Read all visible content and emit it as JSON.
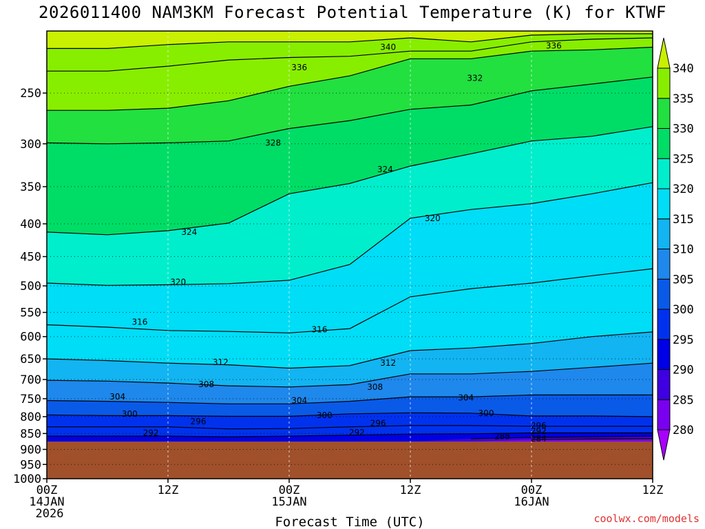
{
  "chart_data": {
    "type": "heatmap",
    "title": "2026011400 NAM3KM Forecast Potential Temperature (K) for KTWF",
    "xlabel": "Forecast Time (UTC)",
    "ylabel": "",
    "credit": "coolwx.com/models",
    "y_ticks": [
      250,
      300,
      350,
      400,
      450,
      500,
      550,
      600,
      650,
      700,
      750,
      800,
      850,
      900,
      950,
      1000
    ],
    "y_range_hpa": [
      1000,
      200
    ],
    "ground_pressure_hpa": 875,
    "x_ticks": [
      {
        "hour": 0,
        "line1": "00Z",
        "line2": "14JAN",
        "line3": "2026"
      },
      {
        "hour": 12,
        "line1": "12Z",
        "line2": "",
        "line3": ""
      },
      {
        "hour": 24,
        "line1": "00Z",
        "line2": "15JAN",
        "line3": ""
      },
      {
        "hour": 36,
        "line1": "12Z",
        "line2": "",
        "line3": ""
      },
      {
        "hour": 48,
        "line1": "00Z",
        "line2": "16JAN",
        "line3": ""
      },
      {
        "hour": 60,
        "line1": "12Z",
        "line2": "",
        "line3": ""
      }
    ],
    "x_range_hours": [
      0,
      60
    ],
    "colorbar_levels": [
      280,
      285,
      290,
      295,
      300,
      305,
      310,
      315,
      320,
      325,
      330,
      335,
      340
    ],
    "colorbar_colors": [
      "#a800ff",
      "#7a00f0",
      "#3e00e0",
      "#0000e6",
      "#0032ee",
      "#0a5ae8",
      "#1e88ec",
      "#12b4f2",
      "#00ddf6",
      "#00eecc",
      "#00dd66",
      "#22e040",
      "#88ee00",
      "#c8f000"
    ],
    "ground_color": "#a0502a",
    "contour_interval_k": 4,
    "hours": [
      0,
      6,
      12,
      18,
      24,
      30,
      36,
      42,
      48,
      54,
      60
    ],
    "isentropes_hpa": [
      {
        "theta": 284,
        "p": [
          0,
          0,
          0,
          0,
          0,
          0,
          0,
          0,
          869,
          867,
          866
        ]
      },
      {
        "theta": 288,
        "p": [
          0,
          0,
          0,
          0,
          0,
          0,
          0,
          866,
          862,
          860,
          858
        ]
      },
      {
        "theta": 292,
        "p": [
          858,
          858,
          858,
          860,
          858,
          855,
          852,
          851,
          848,
          848,
          848
        ]
      },
      {
        "theta": 296,
        "p": [
          830,
          830,
          830,
          836,
          835,
          830,
          826,
          826,
          828,
          828,
          828
        ]
      },
      {
        "theta": 300,
        "p": [
          795,
          797,
          797,
          799,
          799,
          792,
          789,
          790,
          798,
          798,
          800
        ]
      },
      {
        "theta": 304,
        "p": [
          755,
          757,
          760,
          764,
          764,
          757,
          745,
          745,
          740,
          740,
          740
        ]
      },
      {
        "theta": 308,
        "p": [
          702,
          704,
          709,
          716,
          719,
          713,
          686,
          686,
          680,
          670,
          660
        ]
      },
      {
        "theta": 312,
        "p": [
          650,
          654,
          660,
          664,
          672,
          666,
          631,
          625,
          615,
          600,
          590
        ]
      },
      {
        "theta": 316,
        "p": [
          575,
          580,
          587,
          589,
          592,
          583,
          520,
          505,
          495,
          482,
          470
        ]
      },
      {
        "theta": 320,
        "p": [
          495,
          499,
          498,
          496,
          490,
          463,
          392,
          380,
          372,
          359,
          345
        ]
      },
      {
        "theta": 324,
        "p": [
          412,
          416,
          410,
          399,
          359,
          346,
          325,
          311,
          297,
          292,
          282
        ]
      },
      {
        "theta": 328,
        "p": [
          299,
          300,
          299,
          297,
          284,
          276,
          265,
          261,
          248,
          242,
          236
        ]
      },
      {
        "theta": 332,
        "p": [
          266,
          266,
          264,
          257,
          244,
          235,
          221,
          221,
          215,
          214,
          212
        ]
      },
      {
        "theta": 336,
        "p": [
          231,
          231,
          227,
          222,
          220,
          219,
          215,
          215,
          208,
          206,
          205
        ]
      },
      {
        "theta": 340,
        "p": [
          213,
          213,
          210,
          208,
          208,
          208,
          205,
          208,
          203,
          202,
          202
        ]
      }
    ],
    "contour_labels": [
      {
        "text": "340",
        "hour": 33.8,
        "p": 212
      },
      {
        "text": "336",
        "hour": 50.2,
        "p": 211
      },
      {
        "text": "336",
        "hour": 25.0,
        "p": 228
      },
      {
        "text": "332",
        "hour": 42.4,
        "p": 237
      },
      {
        "text": "328",
        "hour": 22.4,
        "p": 299
      },
      {
        "text": "324",
        "hour": 33.5,
        "p": 329
      },
      {
        "text": "324",
        "hour": 14.1,
        "p": 412
      },
      {
        "text": "320",
        "hour": 38.2,
        "p": 392
      },
      {
        "text": "320",
        "hour": 13.0,
        "p": 493
      },
      {
        "text": "316",
        "hour": 9.2,
        "p": 569
      },
      {
        "text": "316",
        "hour": 27.0,
        "p": 585
      },
      {
        "text": "312",
        "hour": 17.2,
        "p": 658
      },
      {
        "text": "312",
        "hour": 33.8,
        "p": 660
      },
      {
        "text": "308",
        "hour": 15.8,
        "p": 712
      },
      {
        "text": "308",
        "hour": 32.5,
        "p": 719
      },
      {
        "text": "304",
        "hour": 7.0,
        "p": 745
      },
      {
        "text": "304",
        "hour": 25.0,
        "p": 755
      },
      {
        "text": "304",
        "hour": 41.5,
        "p": 748
      },
      {
        "text": "300",
        "hour": 8.2,
        "p": 792
      },
      {
        "text": "300",
        "hour": 27.5,
        "p": 796
      },
      {
        "text": "300",
        "hour": 43.5,
        "p": 790
      },
      {
        "text": "296",
        "hour": 15.0,
        "p": 814
      },
      {
        "text": "296",
        "hour": 32.8,
        "p": 819
      },
      {
        "text": "296",
        "hour": 48.7,
        "p": 826
      },
      {
        "text": "292",
        "hour": 10.3,
        "p": 848
      },
      {
        "text": "292",
        "hour": 30.7,
        "p": 847
      },
      {
        "text": "292",
        "hour": 48.7,
        "p": 843
      },
      {
        "text": "288",
        "hour": 45.1,
        "p": 859
      },
      {
        "text": "284",
        "hour": 48.7,
        "p": 866
      }
    ]
  }
}
